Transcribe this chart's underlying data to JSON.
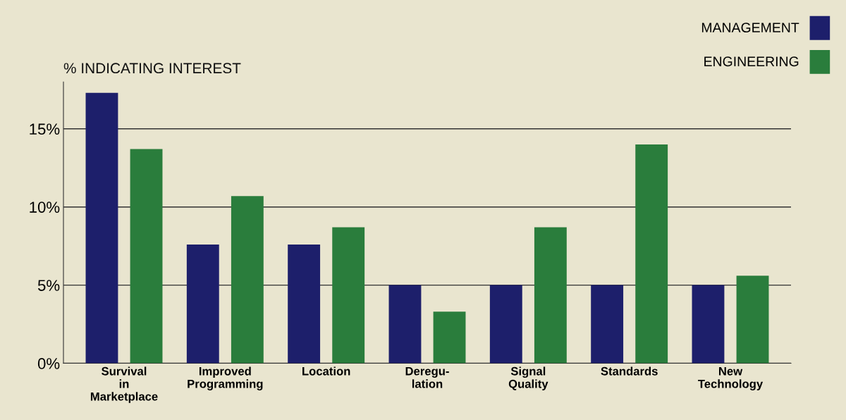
{
  "chart_data": {
    "type": "bar",
    "ylabel": "% INDICATING INTEREST",
    "categories": [
      "Survival\nin\nMarketplace",
      "Improved\nProgramming",
      "Location",
      "Deregu-\nlation",
      "Signal\nQuality",
      "Standards",
      "New\nTechnology"
    ],
    "series": [
      {
        "name": "MANAGEMENT",
        "color": "#1d1f6b",
        "values": [
          17.3,
          7.6,
          7.6,
          5,
          5,
          5,
          5
        ]
      },
      {
        "name": "ENGINEERING",
        "color": "#2a7d3c",
        "values": [
          13.7,
          10.7,
          8.7,
          3.3,
          8.7,
          14,
          5.6
        ]
      }
    ],
    "ylim": [
      0,
      18
    ],
    "yticks": [
      {
        "value": 0,
        "label": "0%"
      },
      {
        "value": 5,
        "label": "5%"
      },
      {
        "value": 10,
        "label": "10%"
      },
      {
        "value": 15,
        "label": "15%"
      }
    ],
    "grid": "y",
    "legend": "top right"
  }
}
